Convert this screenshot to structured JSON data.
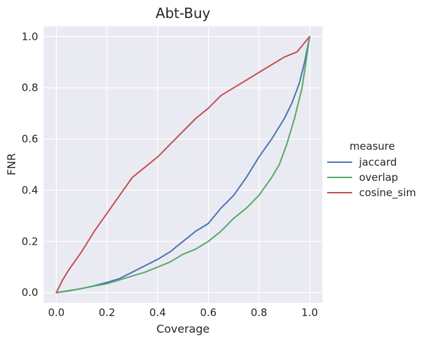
{
  "chart_data": {
    "type": "line",
    "title": "Abt-Buy",
    "xlabel": "Coverage",
    "ylabel": "FNR",
    "xlim": [
      -0.05,
      1.05
    ],
    "ylim": [
      -0.04,
      1.04
    ],
    "xticks": [
      "0.0",
      "0.2",
      "0.4",
      "0.6",
      "0.8",
      "1.0"
    ],
    "yticks": [
      "0.0",
      "0.2",
      "0.4",
      "0.6",
      "0.8",
      "1.0"
    ],
    "grid": true,
    "legend_title": "measure",
    "legend_position": "right",
    "colors": {
      "background": "#eaeaf2",
      "grid": "#ffffff",
      "jaccard": "#4c72b0",
      "overlap": "#55a868",
      "cosine_sim": "#c44e52"
    },
    "series": [
      {
        "name": "jaccard",
        "x": [
          0.0,
          0.05,
          0.1,
          0.15,
          0.2,
          0.25,
          0.3,
          0.35,
          0.4,
          0.45,
          0.5,
          0.55,
          0.6,
          0.65,
          0.7,
          0.75,
          0.8,
          0.85,
          0.9,
          0.93,
          0.96,
          0.98,
          1.0
        ],
        "y": [
          0.0,
          0.007,
          0.016,
          0.027,
          0.04,
          0.055,
          0.08,
          0.105,
          0.13,
          0.16,
          0.2,
          0.24,
          0.27,
          0.33,
          0.38,
          0.45,
          0.53,
          0.6,
          0.68,
          0.74,
          0.82,
          0.9,
          1.0
        ]
      },
      {
        "name": "overlap",
        "x": [
          0.0,
          0.05,
          0.1,
          0.15,
          0.2,
          0.25,
          0.3,
          0.35,
          0.4,
          0.45,
          0.5,
          0.55,
          0.6,
          0.65,
          0.7,
          0.75,
          0.8,
          0.85,
          0.88,
          0.91,
          0.94,
          0.97,
          1.0
        ],
        "y": [
          0.0,
          0.008,
          0.016,
          0.026,
          0.035,
          0.05,
          0.065,
          0.08,
          0.1,
          0.12,
          0.15,
          0.17,
          0.2,
          0.24,
          0.29,
          0.33,
          0.38,
          0.45,
          0.5,
          0.58,
          0.68,
          0.8,
          1.0
        ]
      },
      {
        "name": "cosine_sim",
        "x": [
          0.0,
          0.025,
          0.05,
          0.1,
          0.15,
          0.2,
          0.25,
          0.3,
          0.35,
          0.4,
          0.45,
          0.5,
          0.55,
          0.6,
          0.65,
          0.7,
          0.75,
          0.8,
          0.85,
          0.9,
          0.95,
          1.0
        ],
        "y": [
          0.0,
          0.05,
          0.09,
          0.16,
          0.24,
          0.31,
          0.38,
          0.45,
          0.49,
          0.53,
          0.58,
          0.63,
          0.68,
          0.72,
          0.77,
          0.8,
          0.83,
          0.86,
          0.89,
          0.92,
          0.94,
          1.0
        ]
      }
    ]
  }
}
